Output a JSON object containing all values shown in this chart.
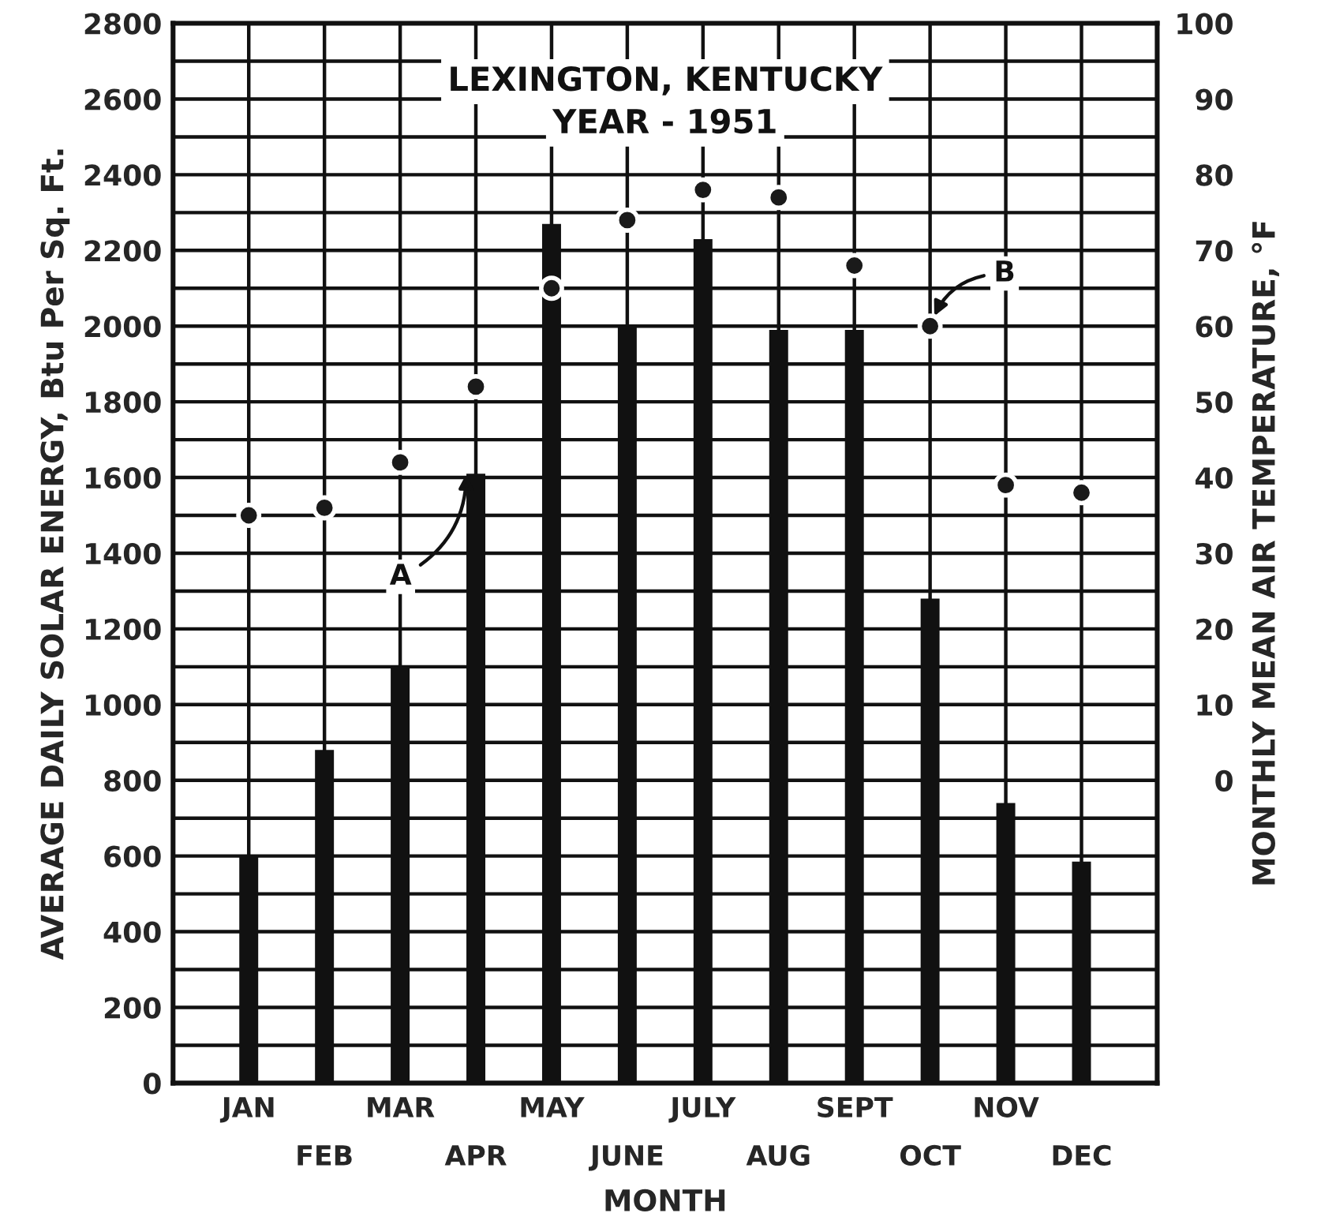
{
  "chart_data": {
    "type": "bar",
    "title": "LEXINGTON, KENTUCKY",
    "subtitle": "YEAR - 1951",
    "xlabel": "MONTH",
    "ylabel": "AVERAGE DAILY SOLAR ENERGY, Btu Per Sq. Ft.",
    "y2label": "MONTHLY MEAN AIR TEMPERATURE, °F",
    "categories": [
      "JAN",
      "FEB",
      "MAR",
      "APR",
      "MAY",
      "JUNE",
      "JULY",
      "AUG",
      "SEPT",
      "OCT",
      "NOV",
      "DEC"
    ],
    "series": [
      {
        "color": "#111111",
        "values": [
          600,
          880,
          1100,
          1610,
          2270,
          2000,
          2230,
          1990,
          1990,
          1280,
          740,
          585
        ]
      },
      {
        "type": "scatter",
        "axis": "y2",
        "color": "#1a1a1a",
        "marker": "circle",
        "values": [
          35,
          36,
          42,
          52,
          65,
          74,
          78,
          77,
          68,
          60,
          39,
          38
        ]
      }
    ],
    "ylim": [
      0,
      2800
    ],
    "yticks": [
      0,
      {
        "value": 100,
        "label": null
      },
      200,
      {
        "value": 300,
        "label": null
      },
      400,
      {
        "value": 500,
        "label": null
      },
      600,
      {
        "value": 700,
        "label": null
      },
      800,
      {
        "value": 900,
        "label": null
      },
      1000,
      {
        "value": 1100,
        "label": null
      },
      1200,
      {
        "value": 1300,
        "label": null
      },
      1400,
      {
        "value": 1500,
        "label": null
      },
      1600,
      {
        "value": 1700,
        "label": null
      },
      1800,
      {
        "value": 1900,
        "label": null
      },
      2000,
      {
        "value": 2100,
        "label": null
      },
      2200,
      {
        "value": 2300,
        "label": null
      },
      2400,
      {
        "value": 2500,
        "label": null
      },
      2600,
      {
        "value": 2700,
        "label": null
      },
      2800
    ],
    "y2lim": [
      -40,
      100
    ],
    "y2ticks": [
      0,
      10,
      20,
      30,
      40,
      50,
      60,
      70,
      80,
      90,
      100
    ],
    "grid": true,
    "annotations": [
      {
        "text": "A",
        "x": "APR",
        "y": 1610
      },
      {
        "text": "B",
        "x": "OCT",
        "y": 2000
      }
    ]
  }
}
